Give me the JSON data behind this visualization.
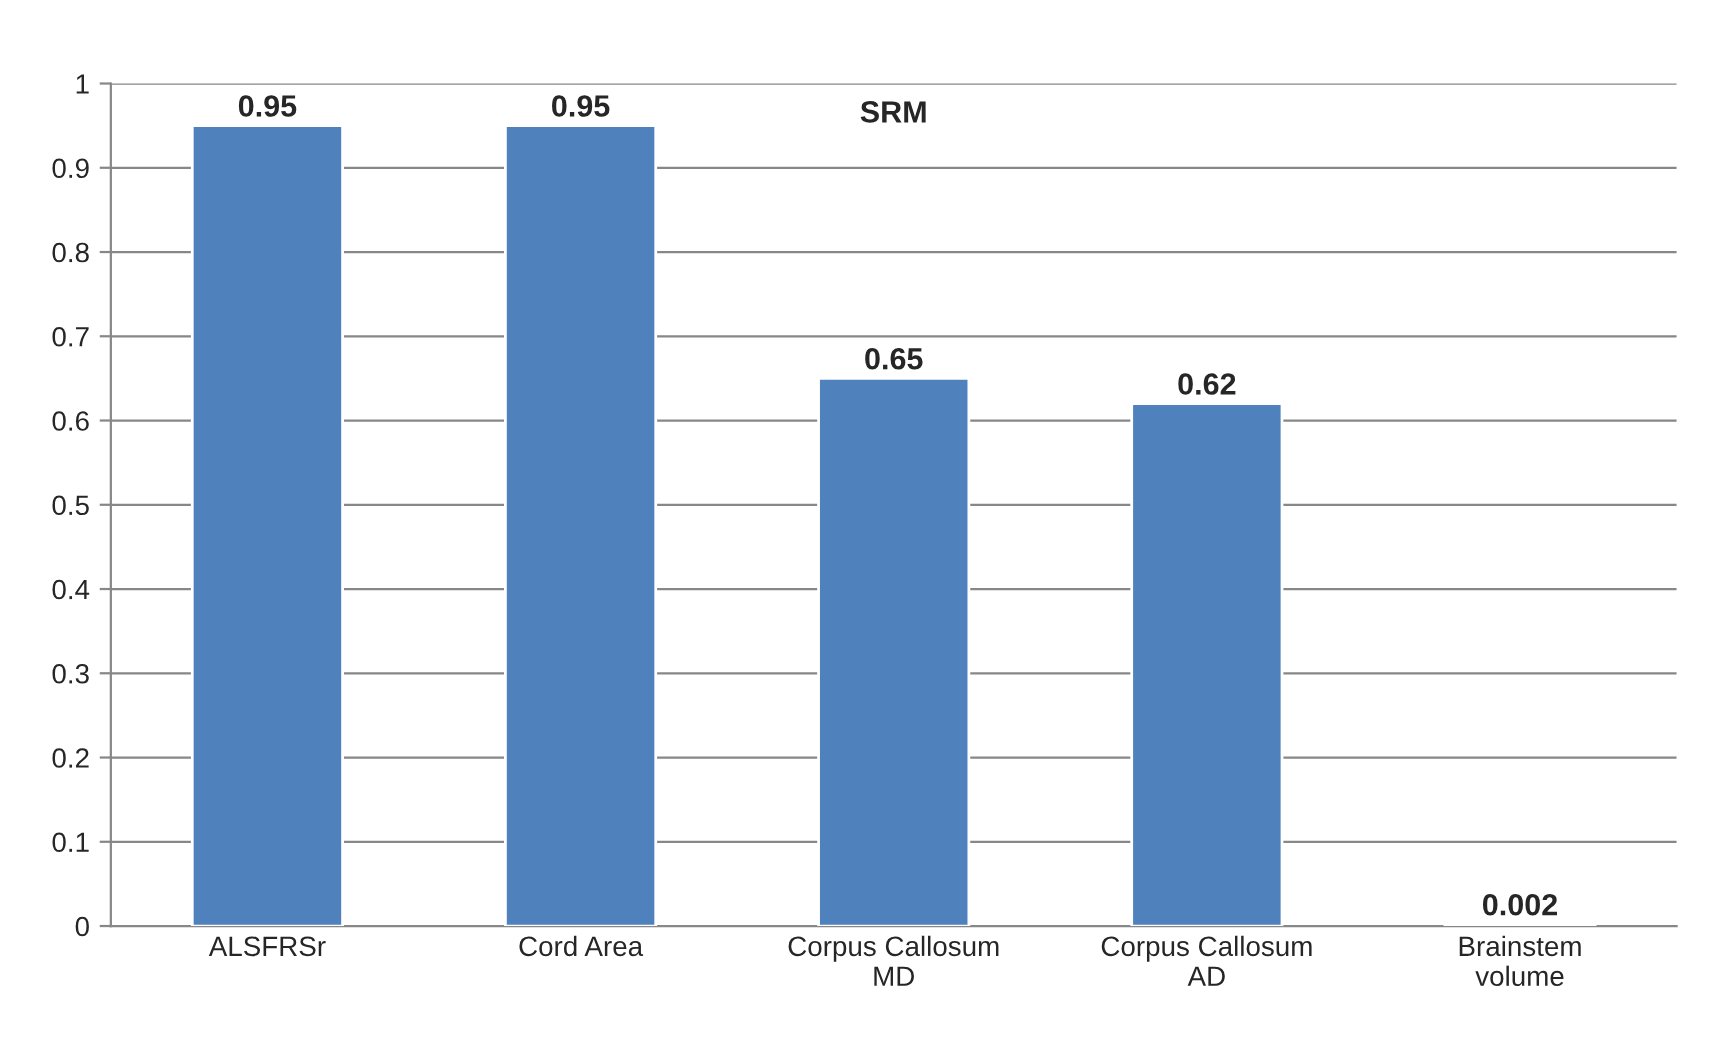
{
  "chart_data": {
    "type": "bar",
    "title": "SRM",
    "categories": [
      "ALSFRSr",
      "Cord Area",
      "Corpus Callosum\nMD",
      "Corpus Callosum\nAD",
      "Brainstem\nvolume"
    ],
    "values": [
      0.95,
      0.95,
      0.65,
      0.62,
      0.002
    ],
    "color": "#4f81bd",
    "ylim": [
      0,
      1
    ],
    "yticks": [
      0,
      0.1,
      0.2,
      0.3,
      0.4,
      0.5,
      0.6,
      0.7,
      0.8,
      0.9,
      1
    ],
    "grid": "y",
    "data_labels": true
  }
}
